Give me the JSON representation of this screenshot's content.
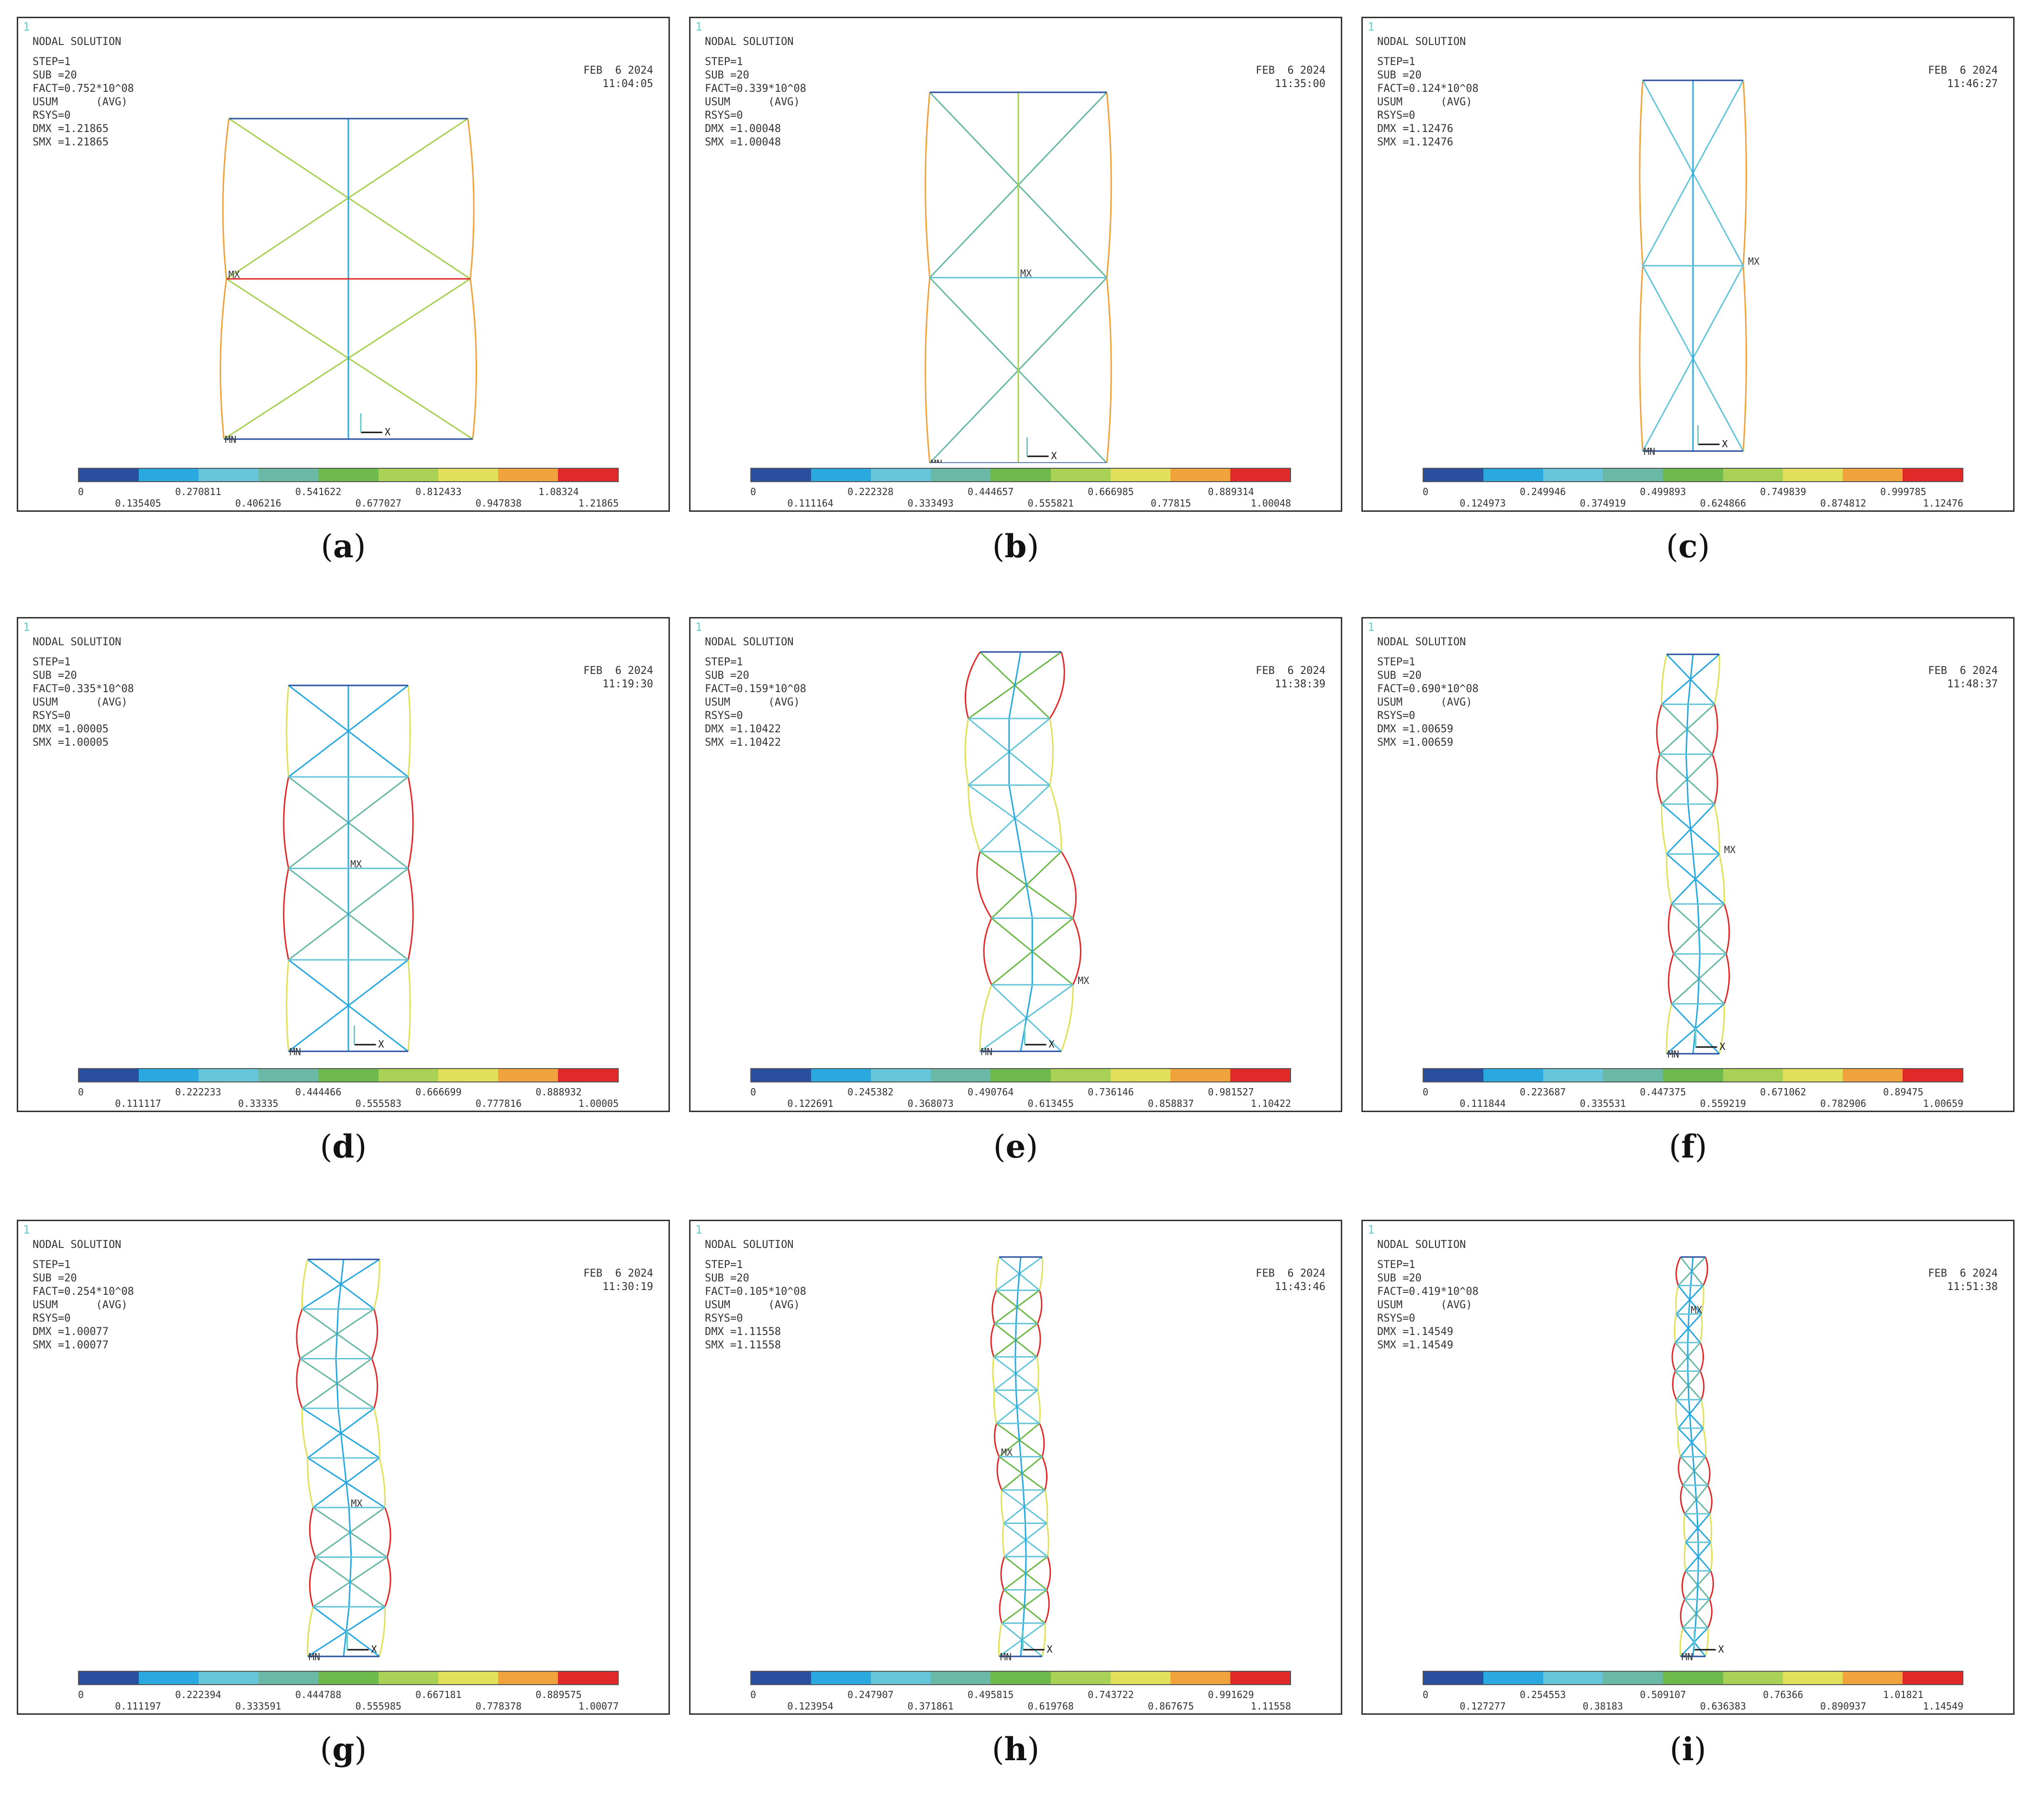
{
  "colors": [
    "#2a4f9e",
    "#2aa8e0",
    "#66c5d9",
    "#6ab8a6",
    "#6db94b",
    "#a8d155",
    "#e2e05a",
    "#f0a23c",
    "#e02a2a"
  ],
  "panels": [
    {
      "label": "a",
      "win": "1",
      "title": "NODAL SOLUTION",
      "step": "STEP=1",
      "sub": "SUB =20",
      "fact": "FACT=0.752*10^08",
      "usum": "USUM      (AVG)",
      "rsys": "RSYS=0",
      "dmx": "DMX =1.21865",
      "smx": "SMX =1.21865",
      "date": "FEB  6 2024",
      "time": "11:04:05",
      "ticks_top": [
        "0",
        "0.270811",
        "0.541622",
        "0.812433",
        "1.08324"
      ],
      "ticks_bottom": [
        "0.135405",
        "0.406216",
        "0.677027",
        "0.947838",
        "1.21865"
      ],
      "mx": "MX",
      "mn": "MN"
    },
    {
      "label": "b",
      "win": "1",
      "title": "NODAL SOLUTION",
      "step": "STEP=1",
      "sub": "SUB =20",
      "fact": "FACT=0.339*10^08",
      "usum": "USUM      (AVG)",
      "rsys": "RSYS=0",
      "dmx": "DMX =1.00048",
      "smx": "SMX =1.00048",
      "date": "FEB  6 2024",
      "time": "11:35:00",
      "ticks_top": [
        "0",
        "0.222328",
        "0.444657",
        "0.666985",
        "0.889314"
      ],
      "ticks_bottom": [
        "0.111164",
        "0.333493",
        "0.555821",
        "0.77815",
        "1.00048"
      ],
      "mx": "MX",
      "mn": "MN"
    },
    {
      "label": "c",
      "win": "1",
      "title": "NODAL SOLUTION",
      "step": "STEP=1",
      "sub": "SUB =20",
      "fact": "FACT=0.124*10^08",
      "usum": "USUM      (AVG)",
      "rsys": "RSYS=0",
      "dmx": "DMX =1.12476",
      "smx": "SMX =1.12476",
      "date": "FEB  6 2024",
      "time": "11:46:27",
      "ticks_top": [
        "0",
        "0.249946",
        "0.499893",
        "0.749839",
        "0.999785"
      ],
      "ticks_bottom": [
        "0.124973",
        "0.374919",
        "0.624866",
        "0.874812",
        "1.12476"
      ],
      "mx": "MX",
      "mn": "MN"
    },
    {
      "label": "d",
      "win": "1",
      "title": "NODAL SOLUTION",
      "step": "STEP=1",
      "sub": "SUB =20",
      "fact": "FACT=0.335*10^08",
      "usum": "USUM      (AVG)",
      "rsys": "RSYS=0",
      "dmx": "DMX =1.00005",
      "smx": "SMX =1.00005",
      "date": "FEB  6 2024",
      "time": "11:19:30",
      "ticks_top": [
        "0",
        "0.222233",
        "0.444466",
        "0.666699",
        "0.888932"
      ],
      "ticks_bottom": [
        "0.111117",
        "0.33335",
        "0.555583",
        "0.777816",
        "1.00005"
      ],
      "mx": "MX",
      "mn": "MN"
    },
    {
      "label": "e",
      "win": "1",
      "title": "NODAL SOLUTION",
      "step": "STEP=1",
      "sub": "SUB =20",
      "fact": "FACT=0.159*10^08",
      "usum": "USUM      (AVG)",
      "rsys": "RSYS=0",
      "dmx": "DMX =1.10422",
      "smx": "SMX =1.10422",
      "date": "FEB  6 2024",
      "time": "11:38:39",
      "ticks_top": [
        "0",
        "0.245382",
        "0.490764",
        "0.736146",
        "0.981527"
      ],
      "ticks_bottom": [
        "0.122691",
        "0.368073",
        "0.613455",
        "0.858837",
        "1.10422"
      ],
      "mx": "MX",
      "mn": "MN"
    },
    {
      "label": "f",
      "win": "1",
      "title": "NODAL SOLUTION",
      "step": "STEP=1",
      "sub": "SUB =20",
      "fact": "FACT=0.690*10^08",
      "usum": "USUM      (AVG)",
      "rsys": "RSYS=0",
      "dmx": "DMX =1.00659",
      "smx": "SMX =1.00659",
      "date": "FEB  6 2024",
      "time": "11:48:37",
      "ticks_top": [
        "0",
        "0.223687",
        "0.447375",
        "0.671062",
        "0.89475"
      ],
      "ticks_bottom": [
        "0.111844",
        "0.335531",
        "0.559219",
        "0.782906",
        "1.00659"
      ],
      "mx": "MX",
      "mn": "MN"
    },
    {
      "label": "g",
      "win": "1",
      "title": "NODAL SOLUTION",
      "step": "STEP=1",
      "sub": "SUB =20",
      "fact": "FACT=0.254*10^08",
      "usum": "USUM      (AVG)",
      "rsys": "RSYS=0",
      "dmx": "DMX =1.00077",
      "smx": "SMX =1.00077",
      "date": "FEB  6 2024",
      "time": "11:30:19",
      "ticks_top": [
        "0",
        "0.222394",
        "0.444788",
        "0.667181",
        "0.889575"
      ],
      "ticks_bottom": [
        "0.111197",
        "0.333591",
        "0.555985",
        "0.778378",
        "1.00077"
      ],
      "mx": "MX",
      "mn": "MN"
    },
    {
      "label": "h",
      "win": "1",
      "title": "NODAL SOLUTION",
      "step": "STEP=1",
      "sub": "SUB =20",
      "fact": "FACT=0.105*10^08",
      "usum": "USUM      (AVG)",
      "rsys": "RSYS=0",
      "dmx": "DMX =1.11558",
      "smx": "SMX =1.11558",
      "date": "FEB  6 2024",
      "time": "11:43:46",
      "ticks_top": [
        "0",
        "0.247907",
        "0.495815",
        "0.743722",
        "0.991629"
      ],
      "ticks_bottom": [
        "0.123954",
        "0.371861",
        "0.619768",
        "0.867675",
        "1.11558"
      ],
      "mx": "MX",
      "mn": "MN"
    },
    {
      "label": "i",
      "win": "1",
      "title": "NODAL SOLUTION",
      "step": "STEP=1",
      "sub": "SUB =20",
      "fact": "FACT=0.419*10^08",
      "usum": "USUM      (AVG)",
      "rsys": "RSYS=0",
      "dmx": "DMX =1.14549",
      "smx": "SMX =1.14549",
      "date": "FEB  6 2024",
      "time": "11:51:38",
      "ticks_top": [
        "0",
        "0.254553",
        "0.509107",
        "0.76366",
        "1.01821"
      ],
      "ticks_bottom": [
        "0.127277",
        "0.38183",
        "0.636383",
        "0.890937",
        "1.14549"
      ],
      "mx": "MX",
      "mn": "MN"
    }
  ]
}
